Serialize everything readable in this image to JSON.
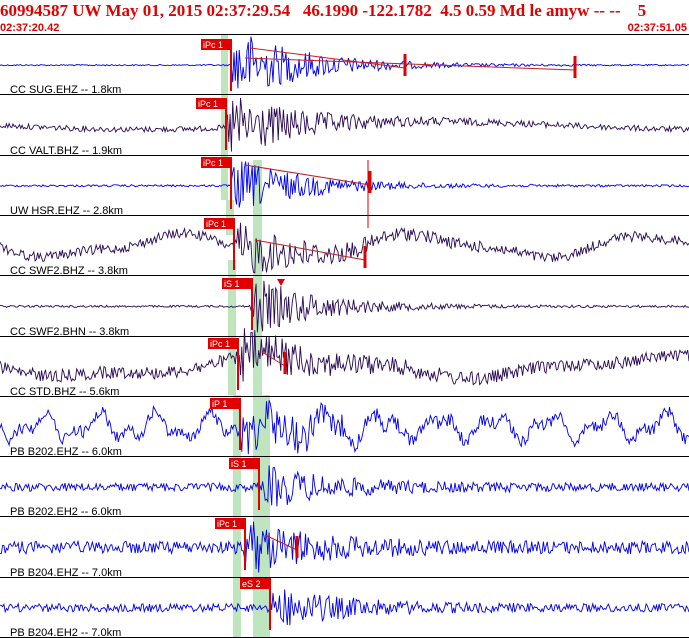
{
  "header": {
    "title": "60994587 UW May 01, 2015 02:37:29.54   46.1990 -122.1782  4.5 0.59 Md le amyw -- --    5",
    "start_time": "02:37:20.42",
    "end_time": "02:37:51.05"
  },
  "colors": {
    "title": "#e00000",
    "pick": "#e00000",
    "coda": "#c02020",
    "trace_blue": "#0000ee",
    "trace_dark": "#2a0a55",
    "window_green": "#bfe5bf",
    "divider": "#000000"
  },
  "traces": [
    {
      "label": "CC SUG.EHZ -- 1.8km",
      "pick": "iPc 1",
      "color": "blue"
    },
    {
      "label": "CC VALT.BHZ -- 1.9km",
      "pick": "iPc 1",
      "color": "dark"
    },
    {
      "label": "UW HSR.EHZ -- 2.8km",
      "pick": "iPc 1",
      "color": "blue"
    },
    {
      "label": "CC SWF2.BHZ -- 3.8km",
      "pick": "iPc 1",
      "color": "dark"
    },
    {
      "label": "CC SWF2.BHN -- 3.8km",
      "pick": "iS 1",
      "color": "dark"
    },
    {
      "label": "CC STD.BHZ -- 5.6km",
      "pick": "iPc 1",
      "color": "dark"
    },
    {
      "label": "PB B202.EHZ -- 6.0km",
      "pick": "iP 1",
      "color": "blue"
    },
    {
      "label": "PB B202.EH2 -- 6.0km",
      "pick": "iS 1",
      "color": "blue"
    },
    {
      "label": "PB B204.EHZ -- 7.0km",
      "pick": "iPc 1",
      "color": "blue"
    },
    {
      "label": "PB B204.EH2 -- 7.0km",
      "pick": "eS 2",
      "color": "blue"
    }
  ]
}
